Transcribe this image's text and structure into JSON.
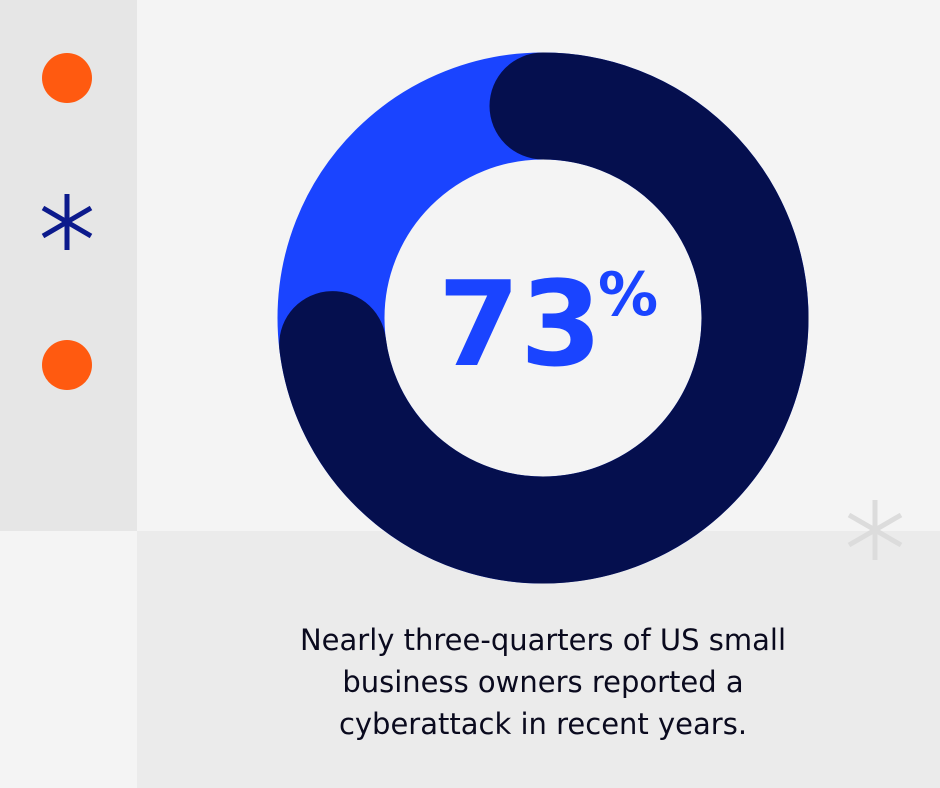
{
  "chart_data": {
    "type": "donut",
    "values": [
      73
    ],
    "value_unit": "%",
    "total": 100,
    "colors": {
      "value": "#050f4e",
      "rest": "#1a44ff"
    },
    "caption": [
      "Nearly three-quarters of US small",
      "business owners reported a",
      "cyberattack in recent years."
    ]
  }
}
